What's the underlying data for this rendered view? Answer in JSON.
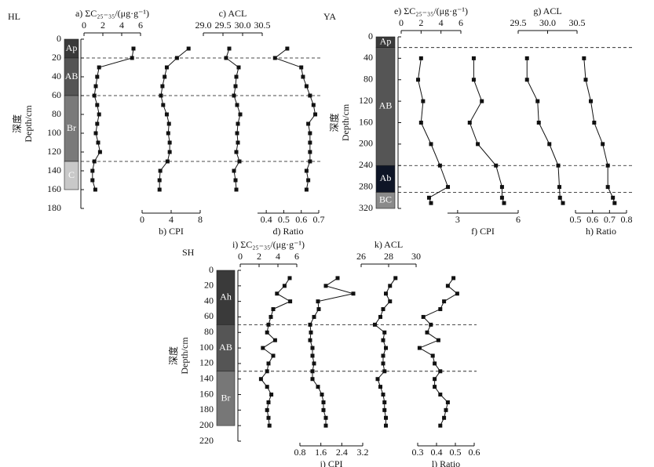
{
  "chart_data": [
    {
      "type": "depth-profile",
      "site": "HL",
      "ylabel_cn": "深度",
      "ylabel": "Depth/cm",
      "ylim": [
        0,
        180
      ],
      "yticks": [
        0,
        20,
        40,
        60,
        80,
        100,
        120,
        140,
        160,
        180
      ],
      "horizons": [
        {
          "name": "Ap",
          "top": 0,
          "bottom": 20,
          "color": "#3a3a3a"
        },
        {
          "name": "AB",
          "top": 20,
          "bottom": 60,
          "color": "#555555"
        },
        {
          "name": "Br",
          "top": 60,
          "bottom": 130,
          "color": "#7a7a7a"
        },
        {
          "name": "C",
          "top": 130,
          "bottom": 160,
          "color": "#c8c8c8"
        }
      ],
      "boundaries": [
        20,
        60,
        130
      ],
      "depths": [
        10,
        20,
        30,
        40,
        50,
        60,
        70,
        80,
        90,
        100,
        110,
        120,
        130,
        140,
        150,
        160
      ],
      "profiles": [
        {
          "title": "a) ΣC₂₅₋₃₅/(μg·g⁻¹)",
          "axis": "top",
          "xlim": [
            0,
            6
          ],
          "xticks": [
            0,
            2,
            4,
            6
          ],
          "values": [
            5.25,
            5.1,
            1.6,
            1.4,
            1.25,
            1.1,
            1.4,
            1.6,
            1.4,
            1.25,
            1.5,
            1.7,
            1.1,
            0.9,
            0.9,
            1.2
          ]
        },
        {
          "title": "b) CPI",
          "axis": "bottom",
          "xlim": [
            0,
            8
          ],
          "xticks": [
            0,
            4,
            8
          ],
          "values": [
            6.4,
            4.8,
            3.4,
            3.1,
            2.8,
            2.6,
            2.9,
            3.4,
            3.7,
            3.6,
            3.8,
            3.8,
            3.5,
            2.5,
            2.4,
            2.4
          ]
        },
        {
          "title": "c) ACL",
          "axis": "top",
          "xlim": [
            29.0,
            30.5
          ],
          "xticks": [
            {
              "value": 29.0,
              "label": "29.0"
            },
            29.5,
            {
              "value": 30.0,
              "label": "30.0"
            },
            30.5
          ],
          "values": [
            29.66,
            29.58,
            29.9,
            29.84,
            29.82,
            29.78,
            29.86,
            29.94,
            29.88,
            29.86,
            29.88,
            29.84,
            29.92,
            29.78,
            29.82,
            29.84
          ]
        },
        {
          "title": "d) Ratio",
          "axis": "bottom",
          "xlim": [
            0.35,
            0.7
          ],
          "xticks": [
            0.4,
            0.5,
            0.6,
            0.7
          ],
          "values": [
            0.52,
            0.45,
            0.6,
            0.61,
            0.63,
            0.65,
            0.67,
            0.68,
            0.64,
            0.65,
            0.65,
            0.65,
            0.65,
            0.63,
            0.64,
            0.63
          ]
        }
      ]
    },
    {
      "type": "depth-profile",
      "site": "YA",
      "ylabel_cn": "深度",
      "ylabel": "Depth/cm",
      "ylim": [
        0,
        320
      ],
      "yticks": [
        0,
        40,
        80,
        120,
        160,
        200,
        240,
        280,
        320
      ],
      "horizons": [
        {
          "name": "Ap",
          "top": 0,
          "bottom": 20,
          "color": "#3a3a3a"
        },
        {
          "name": "AB",
          "top": 20,
          "bottom": 240,
          "color": "#555555"
        },
        {
          "name": "Ab",
          "top": 240,
          "bottom": 290,
          "color": "#0e1526"
        },
        {
          "name": "BC",
          "top": 290,
          "bottom": 320,
          "color": "#8a8a8a"
        }
      ],
      "boundaries": [
        20,
        240,
        290
      ],
      "depths": [
        40,
        80,
        120,
        160,
        200,
        240,
        280,
        300,
        310
      ],
      "profiles": [
        {
          "title": "e) ΣC₂₅₋₃₅/(μg·g⁻¹)",
          "axis": "top",
          "xlim": [
            0,
            6
          ],
          "xticks": [
            0,
            2,
            4,
            6
          ],
          "values": [
            2.0,
            1.7,
            2.2,
            2.0,
            3.0,
            3.9,
            4.7,
            2.8,
            3.0
          ]
        },
        {
          "title": "f) CPI",
          "axis": "bottom",
          "xlim": [
            2.5,
            6
          ],
          "xticks": [
            3,
            6
          ],
          "values": [
            3.8,
            3.8,
            4.2,
            3.6,
            4.0,
            4.9,
            5.2,
            5.2,
            5.3
          ]
        },
        {
          "title": "g) ACL",
          "axis": "top",
          "xlim": [
            29.5,
            30.5
          ],
          "xticks": [
            29.5,
            {
              "value": 30.0,
              "label": "30.0"
            },
            30.5
          ],
          "values": [
            29.65,
            29.65,
            29.83,
            29.85,
            30.03,
            30.18,
            30.2,
            30.21,
            30.26
          ]
        },
        {
          "title": "h) Ratio",
          "axis": "bottom",
          "xlim": [
            0.5,
            0.8
          ],
          "xticks": [
            0.5,
            0.6,
            0.7,
            0.8
          ],
          "values": [
            0.55,
            0.56,
            0.59,
            0.61,
            0.66,
            0.69,
            0.69,
            0.72,
            0.73
          ]
        }
      ]
    },
    {
      "type": "depth-profile",
      "site": "SH",
      "ylabel_cn": "深度",
      "ylabel": "Depth/cm",
      "ylim": [
        0,
        220
      ],
      "yticks": [
        0,
        20,
        40,
        60,
        80,
        100,
        120,
        140,
        160,
        180,
        200,
        220
      ],
      "horizons": [
        {
          "name": "Ah",
          "top": 0,
          "bottom": 70,
          "color": "#3a3a3a"
        },
        {
          "name": "AB",
          "top": 70,
          "bottom": 130,
          "color": "#555555"
        },
        {
          "name": "Br",
          "top": 130,
          "bottom": 200,
          "color": "#777777"
        }
      ],
      "boundaries": [
        70,
        130
      ],
      "depths": [
        10,
        20,
        30,
        40,
        50,
        60,
        70,
        80,
        90,
        100,
        110,
        120,
        130,
        140,
        150,
        160,
        170,
        180,
        190,
        200
      ],
      "profiles": [
        {
          "title": "i) ΣC₂₅₋₃₅/(μg·g⁻¹)",
          "axis": "top",
          "xlim": [
            0,
            6
          ],
          "xticks": [
            0,
            2,
            4,
            6
          ],
          "values": [
            5.25,
            4.7,
            3.9,
            5.3,
            3.5,
            3.25,
            3.0,
            2.85,
            3.7,
            2.4,
            3.5,
            3.0,
            2.85,
            2.2,
            2.85,
            3.3,
            3.0,
            2.85,
            3.0,
            3.1
          ]
        },
        {
          "title": "j) CPI",
          "axis": "bottom",
          "xlim": [
            0.8,
            3.2
          ],
          "xticks": [
            0.8,
            1.6,
            2.4,
            3.2
          ],
          "values": [
            2.24,
            1.79,
            2.84,
            1.49,
            1.52,
            1.34,
            1.19,
            1.22,
            1.19,
            1.28,
            1.28,
            1.34,
            1.28,
            1.28,
            1.49,
            1.64,
            1.7,
            1.7,
            1.79,
            1.79
          ]
        },
        {
          "title": "k) ACL",
          "axis": "top",
          "xlim": [
            26,
            30
          ],
          "xticks": [
            26,
            28,
            30
          ],
          "values": [
            28.5,
            28.1,
            27.8,
            28.1,
            27.6,
            27.4,
            27.0,
            27.7,
            27.6,
            27.8,
            27.6,
            27.6,
            27.7,
            27.2,
            27.4,
            27.6,
            27.7,
            27.7,
            27.8,
            27.8
          ]
        },
        {
          "title": "l) Ratio",
          "axis": "bottom",
          "xlim": [
            0.3,
            0.6
          ],
          "xticks": [
            0.3,
            0.4,
            0.5,
            0.6
          ],
          "values": [
            0.49,
            0.46,
            0.51,
            0.44,
            0.42,
            0.33,
            0.37,
            0.35,
            0.41,
            0.31,
            0.38,
            0.39,
            0.42,
            0.39,
            0.39,
            0.42,
            0.46,
            0.45,
            0.44,
            0.42
          ]
        }
      ]
    }
  ]
}
